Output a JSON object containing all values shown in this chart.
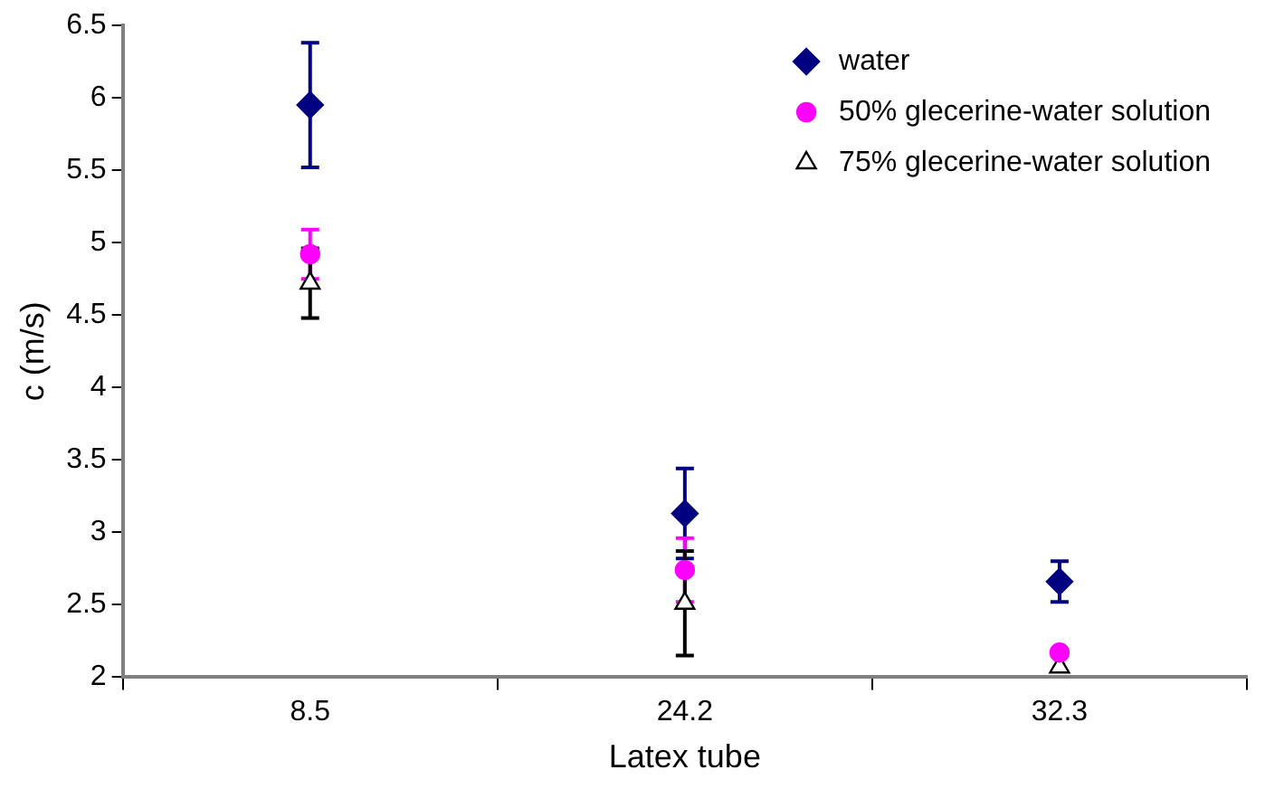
{
  "chart_data": {
    "type": "scatter",
    "xlabel": "Latex tube",
    "ylabel": "c (m/s)",
    "categories": [
      "8.5",
      "24.2",
      "32.3"
    ],
    "ylim": [
      2,
      6.5
    ],
    "yticks": [
      2,
      2.5,
      3,
      3.5,
      4,
      4.5,
      5,
      5.5,
      6,
      6.5
    ],
    "grid": false,
    "legend": "top right",
    "series": [
      {
        "name": "water",
        "color": "#000080",
        "marker": "diamond",
        "values": [
          5.95,
          3.13,
          2.66
        ],
        "errors": [
          0.43,
          0.31,
          0.14
        ]
      },
      {
        "name": "50% glecerine-water solution",
        "color": "#ff00ff",
        "marker": "circle",
        "values": [
          4.92,
          2.74,
          2.17
        ],
        "errors": [
          0.17,
          0.22,
          null
        ]
      },
      {
        "name": "75% glecerine-water solution",
        "color": "#000000",
        "marker": "triangle",
        "values": [
          4.72,
          2.51,
          2.07
        ],
        "errors": [
          0.24,
          0.36,
          null
        ]
      }
    ]
  }
}
